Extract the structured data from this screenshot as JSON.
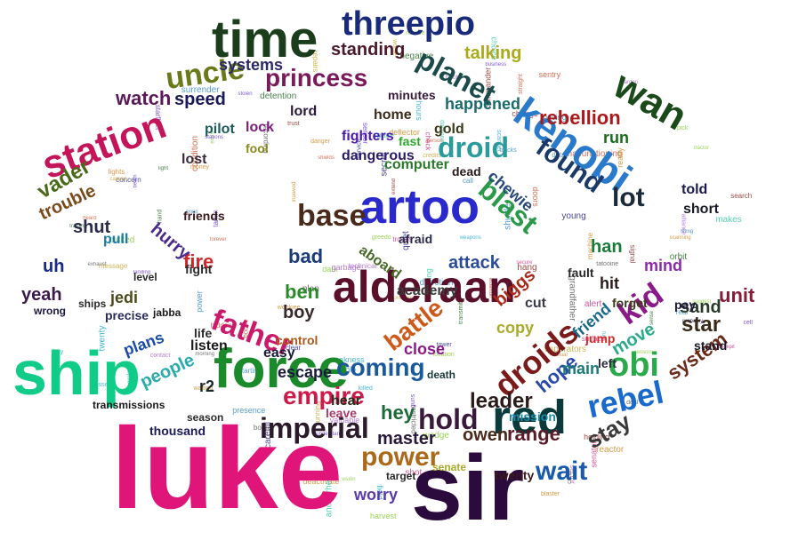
{
  "cloud": {
    "words": [
      {
        "text": "luke",
        "color": "#e0157a"
      },
      {
        "text": "sir",
        "color": "#2b0a3d"
      },
      {
        "text": "ship",
        "color": "#11cc88"
      },
      {
        "text": "force",
        "color": "#1a8a2a"
      },
      {
        "text": "time",
        "color": "#1c3d1c"
      },
      {
        "text": "artoo",
        "color": "#2a2acc"
      },
      {
        "text": "alderaan",
        "color": "#5a0f2a"
      },
      {
        "text": "red",
        "color": "#0a3a3a"
      },
      {
        "text": "kenobi",
        "color": "#2a7acc"
      },
      {
        "text": "station",
        "color": "#c4145a"
      },
      {
        "text": "wan",
        "color": "#1a4a1a"
      },
      {
        "text": "threepio",
        "color": "#1a2a7a"
      },
      {
        "text": "uncle",
        "color": "#6a7a1a"
      },
      {
        "text": "planet",
        "color": "#1a4a4a"
      },
      {
        "text": "princess",
        "color": "#7a1a5a"
      },
      {
        "text": "droid",
        "color": "#2a9a9a"
      },
      {
        "text": "blast",
        "color": "#2a9a4a"
      },
      {
        "text": "base",
        "color": "#4a2a1a"
      },
      {
        "text": "found",
        "color": "#1a3a6a"
      },
      {
        "text": "lot",
        "color": "#1a2a3a"
      },
      {
        "text": "droids",
        "color": "#7a1a1a"
      },
      {
        "text": "rebel",
        "color": "#1a6acc"
      },
      {
        "text": "obi",
        "color": "#2aaa4a"
      },
      {
        "text": "father",
        "color": "#cc1a6a"
      },
      {
        "text": "kid",
        "color": "#8a1a8a"
      },
      {
        "text": "imperial",
        "color": "#2a1a2a"
      },
      {
        "text": "hold",
        "color": "#3a1a3a"
      },
      {
        "text": "coming",
        "color": "#1a5a9a"
      },
      {
        "text": "power",
        "color": "#aa6a1a"
      },
      {
        "text": "empire",
        "color": "#cc1a4a"
      },
      {
        "text": "wait",
        "color": "#1a5aaa"
      },
      {
        "text": "battle",
        "color": "#cc5a1a"
      },
      {
        "text": "vader",
        "color": "#4a6a1a"
      },
      {
        "text": "rebellion",
        "color": "#aa1a1a"
      },
      {
        "text": "standing",
        "color": "#4a1a2a"
      },
      {
        "text": "talking",
        "color": "#aaaa1a"
      },
      {
        "text": "watch",
        "color": "#5a1a5a"
      },
      {
        "text": "speed",
        "color": "#1a1a5a"
      },
      {
        "text": "systems",
        "color": "#2a2a6a"
      },
      {
        "text": "trouble",
        "color": "#7a4a1a"
      },
      {
        "text": "shut",
        "color": "#2a2a4a"
      },
      {
        "text": "uh",
        "color": "#1a2a8a"
      },
      {
        "text": "yeah",
        "color": "#3a1a4a"
      },
      {
        "text": "jedi",
        "color": "#4a4a1a"
      },
      {
        "text": "fire",
        "color": "#cc2a2a"
      },
      {
        "text": "ben",
        "color": "#2a8a2a"
      },
      {
        "text": "bad",
        "color": "#1a3a7a"
      },
      {
        "text": "hurry",
        "color": "#4a2a8a"
      },
      {
        "text": "attack",
        "color": "#2a4a9a"
      },
      {
        "text": "leader",
        "color": "#2a1a1a"
      },
      {
        "text": "hey",
        "color": "#1a6a3a"
      },
      {
        "text": "stay",
        "color": "#3a3a3a"
      },
      {
        "text": "master",
        "color": "#2a1a3a"
      },
      {
        "text": "owen",
        "color": "#4a2a1a"
      },
      {
        "text": "range",
        "color": "#5a1a2a"
      },
      {
        "text": "mission",
        "color": "#1a8aaa"
      },
      {
        "text": "worry",
        "color": "#5a3aaa"
      },
      {
        "text": "hope",
        "color": "#2a4aaa"
      },
      {
        "text": "main",
        "color": "#1a7a7a"
      },
      {
        "text": "close",
        "color": "#8a1a8a"
      },
      {
        "text": "escape",
        "color": "#1a1a3a"
      },
      {
        "text": "people",
        "color": "#2aaaaa"
      },
      {
        "text": "plans",
        "color": "#1a4aaa"
      },
      {
        "text": "listen",
        "color": "#1a1a1a"
      },
      {
        "text": "star",
        "color": "#3a2a1a"
      },
      {
        "text": "sand",
        "color": "#2a3a2a"
      },
      {
        "text": "unit",
        "color": "#8a1a3a"
      },
      {
        "text": "system",
        "color": "#6a2a1a"
      },
      {
        "text": "move",
        "color": "#2aaa8a"
      },
      {
        "text": "friend",
        "color": "#1a6a8a"
      },
      {
        "text": "mind",
        "color": "#8a2aaa"
      },
      {
        "text": "han",
        "color": "#1a7a3a"
      },
      {
        "text": "chewie",
        "color": "#2a4a7a"
      },
      {
        "text": "biggs",
        "color": "#aa2a1a"
      },
      {
        "text": "copy",
        "color": "#aaaa2a"
      },
      {
        "text": "academy",
        "color": "#3a3a3a"
      },
      {
        "text": "aboard",
        "color": "#4a6a2a"
      },
      {
        "text": "boy",
        "color": "#3a2a2a"
      },
      {
        "text": "hit",
        "color": "#2a1a1a"
      },
      {
        "text": "cut",
        "color": "#3a3a4a"
      },
      {
        "text": "pilot",
        "color": "#1a5a5a"
      },
      {
        "text": "lord",
        "color": "#2a1a3a"
      },
      {
        "text": "home",
        "color": "#3a2a1a"
      },
      {
        "text": "gold",
        "color": "#3a3a1a"
      },
      {
        "text": "run",
        "color": "#1a6a1a"
      },
      {
        "text": "lock",
        "color": "#7a1a7a"
      },
      {
        "text": "fool",
        "color": "#8a8a1a"
      },
      {
        "text": "lost",
        "color": "#3a2a3a"
      },
      {
        "text": "fight",
        "color": "#2a2a2a"
      },
      {
        "text": "pull",
        "color": "#1a7aaa"
      },
      {
        "text": "friends",
        "color": "#3a1a1a"
      },
      {
        "text": "told",
        "color": "#1a1a4a"
      },
      {
        "text": "short",
        "color": "#1a1a2a"
      },
      {
        "text": "fighters",
        "color": "#4a1aaa"
      },
      {
        "text": "dangerous",
        "color": "#2a1a6a"
      },
      {
        "text": "computer",
        "color": "#2a7a2a"
      },
      {
        "text": "happened",
        "color": "#1a6a6a"
      },
      {
        "text": "minutes",
        "color": "#3a1a3a"
      },
      {
        "text": "dead",
        "color": "#2a1a1a"
      },
      {
        "text": "afraid",
        "color": "#2a2a4a"
      },
      {
        "text": "r2",
        "color": "#1a2a2a"
      },
      {
        "text": "easy",
        "color": "#1a1a3a"
      },
      {
        "text": "hear",
        "color": "#2a2a1a"
      },
      {
        "text": "transmissions",
        "color": "#1a1a1a"
      },
      {
        "text": "thousand",
        "color": "#1a1a5a"
      },
      {
        "text": "season",
        "color": "#2a2a2a"
      },
      {
        "text": "twenty",
        "color": "#3a1a1a"
      },
      {
        "text": "precise",
        "color": "#2a2a5a"
      },
      {
        "text": "level",
        "color": "#2a2a2a"
      },
      {
        "text": "jabba",
        "color": "#1a1a1a"
      },
      {
        "text": "ships",
        "color": "#2a2a2a"
      },
      {
        "text": "wrong",
        "color": "#1a1a4a"
      },
      {
        "text": "control",
        "color": "#aa5a1a"
      },
      {
        "text": "fast",
        "color": "#2aaa2a"
      },
      {
        "text": "life",
        "color": "#2a2a2a"
      },
      {
        "text": "leave",
        "color": "#aa3a6a"
      },
      {
        "text": "fault",
        "color": "#2a2a2a"
      },
      {
        "text": "pay",
        "color": "#1a1a3a"
      },
      {
        "text": "forget",
        "color": "#3a3a1a"
      },
      {
        "text": "stand",
        "color": "#1a1a2a"
      },
      {
        "text": "jump",
        "color": "#cc2a2a"
      },
      {
        "text": "left",
        "color": "#2a2a3a"
      },
      {
        "text": "senate",
        "color": "#aaaa2a"
      },
      {
        "text": "target",
        "color": "#2a2a2a"
      },
      {
        "text": "death",
        "color": "#1a3a3a"
      }
    ],
    "filler": [
      "information",
      "negative",
      "presence",
      "morning",
      "picked",
      "location",
      "sensor",
      "powerful",
      "space",
      "straight",
      "weakness",
      "technical",
      "service",
      "reactor",
      "surface",
      "trust",
      "weapons",
      "real",
      "tractor",
      "vaporators",
      "wedge",
      "worse",
      "heard",
      "killed",
      "tracks",
      "light",
      "plan",
      "hang",
      "garbage",
      "galaxy",
      "tower",
      "quiet",
      "harvest",
      "starfleet",
      "rescue",
      "waiting",
      "understand",
      "suggest",
      "tarkin",
      "machine",
      "bring",
      "credits",
      "deflector",
      "anchorhead",
      "boards",
      "detention",
      "data",
      "cell",
      "boots",
      "glowing",
      "deactivate",
      "scanning",
      "stations",
      "universe",
      "recording",
      "secure",
      "business",
      "alert",
      "choice",
      "commander",
      "captain",
      "direction",
      "beam",
      "board",
      "doors",
      "hidden",
      "message",
      "moving",
      "shields",
      "troops",
      "solo",
      "money",
      "alliance",
      "transmit",
      "repairs",
      "scanner",
      "shuttle",
      "senator",
      "power",
      "exhaust",
      "blaster",
      "concern",
      "contact",
      "danger",
      "careful",
      "grandfather",
      "holding",
      "greedo",
      "extra",
      "extend",
      "call",
      "dark",
      "check",
      "change",
      "clear",
      "young",
      "twenty",
      "ready",
      "pardon",
      "signal",
      "sensors",
      "lights",
      "guns",
      "hand",
      "search",
      "surrender",
      "training",
      "vision",
      "valuable",
      "vessel",
      "wookiee",
      "stolen",
      "step",
      "restricted",
      "starting",
      "makes",
      "forever",
      "field",
      "secret",
      "bocce",
      "tatooine",
      "dantooine",
      "condition",
      "malfunctioning",
      "visual",
      "crew",
      "pick",
      "shot",
      "person",
      "hours",
      "sense",
      "sentry",
      "lifting",
      "running",
      "probably",
      "orbit",
      "deal",
      "cockpit",
      "fuel",
      "landing",
      "bay",
      "sector"
    ]
  }
}
